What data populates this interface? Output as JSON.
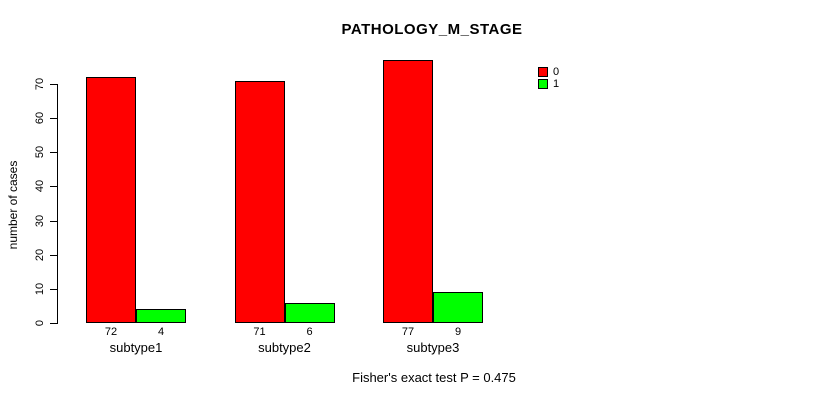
{
  "chart_data": {
    "type": "bar",
    "title": "PATHOLOGY_M_STAGE",
    "xlabel": "",
    "ylabel": "number of cases",
    "categories": [
      "subtype1",
      "subtype2",
      "subtype3"
    ],
    "series": [
      {
        "name": "0",
        "color": "#ff0000",
        "values": [
          72,
          71,
          77
        ]
      },
      {
        "name": "1",
        "color": "#00ff00",
        "values": [
          4,
          6,
          9
        ]
      }
    ],
    "bar_value_labels": [
      [
        72,
        4
      ],
      [
        71,
        6
      ],
      [
        77,
        9
      ]
    ],
    "yticks": [
      0,
      10,
      20,
      30,
      40,
      50,
      60,
      70
    ],
    "ylim": [
      0,
      77
    ],
    "grid": false,
    "legend_position": "top-right"
  },
  "footnote": "Fisher's exact test P = 0.475"
}
